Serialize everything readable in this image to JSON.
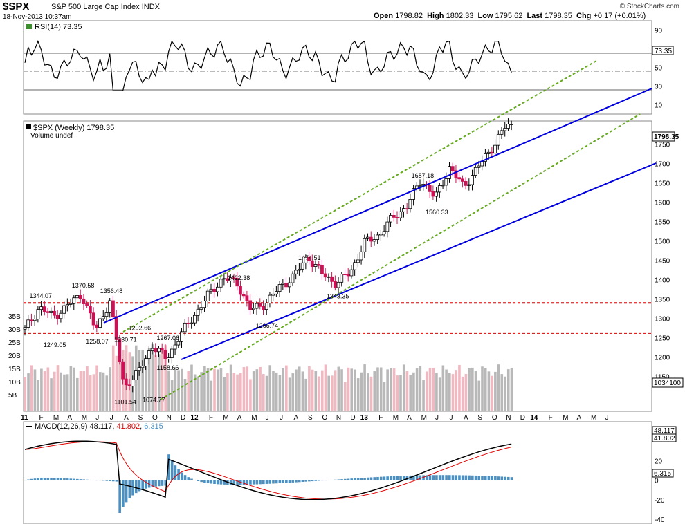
{
  "header": {
    "symbol": "$SPX",
    "name": "S&P 500 Large Cap Index",
    "exchange": "INDX",
    "datetime": "18-Nov-2013 10:37am",
    "brand": "© StockCharts.com",
    "open_label": "Open",
    "open": "1798.82",
    "high_label": "High",
    "high": "1802.33",
    "low_label": "Low",
    "low": "1795.62",
    "last_label": "Last",
    "last": "1798.35",
    "chg_label": "Chg",
    "chg": "+0.17 (+0.01%)"
  },
  "rsi": {
    "label": "RSI(14) 73.35",
    "current": "73.35",
    "ticks": [
      90,
      50,
      30,
      10
    ],
    "ylim": [
      0,
      100
    ],
    "ref_lines": [
      70,
      50,
      30
    ]
  },
  "price_panel": {
    "label": "$SPX (Weekly) 1798.35",
    "volume_label": "Volume undef",
    "current": "1798.35",
    "ticks": [
      1750,
      1700,
      1650,
      1600,
      1550,
      1500,
      1450,
      1400,
      1350,
      1300,
      1250,
      1200,
      1150
    ],
    "volume_ticks": [
      "35B",
      "30B",
      "25B",
      "20B",
      "15B",
      "10B",
      "5B"
    ],
    "volume_current": "1034100",
    "annotations": [
      {
        "text": "1344.07",
        "x": "2011-02",
        "y": 1344.07
      },
      {
        "text": "1249.05",
        "x": "2011-03",
        "y": 1249.05
      },
      {
        "text": "1370.58",
        "x": "2011-05",
        "y": 1370.58
      },
      {
        "text": "1258.07",
        "x": "2011-06",
        "y": 1258.07
      },
      {
        "text": "1356.48",
        "x": "2011-07",
        "y": 1356.48
      },
      {
        "text": "1101.54",
        "x": "2011-08",
        "y": 1101.54
      },
      {
        "text": "1230.71",
        "x": "2011-08",
        "y": 1230.71
      },
      {
        "text": "1292.66",
        "x": "2011-09",
        "y": 1292.66
      },
      {
        "text": "1074.77",
        "x": "2011-10",
        "y": 1074.77
      },
      {
        "text": "1267.06",
        "x": "2011-11",
        "y": 1267.06
      },
      {
        "text": "1158.66",
        "x": "2011-11",
        "y": 1158.66
      },
      {
        "text": "1422.38",
        "x": "2012-04",
        "y": 1422.38
      },
      {
        "text": "1266.74",
        "x": "2012-06",
        "y": 1266.74
      },
      {
        "text": "1474.51",
        "x": "2012-09",
        "y": 1474.51
      },
      {
        "text": "1343.35",
        "x": "2012-11",
        "y": 1343.35
      },
      {
        "text": "1687.18",
        "x": "2013-05",
        "y": 1687.18
      },
      {
        "text": "1560.33",
        "x": "2013-06",
        "y": 1560.33
      }
    ],
    "support_lines": [
      1340,
      1262
    ]
  },
  "x_axis": {
    "labels": [
      "11",
      "F",
      "M",
      "A",
      "M",
      "J",
      "J",
      "A",
      "S",
      "O",
      "N",
      "D",
      "12",
      "F",
      "M",
      "A",
      "M",
      "J",
      "J",
      "A",
      "S",
      "O",
      "N",
      "D",
      "13",
      "F",
      "M",
      "A",
      "M",
      "J",
      "J",
      "A",
      "S",
      "O",
      "N",
      "D",
      "14",
      "F",
      "M",
      "A",
      "M",
      "J"
    ]
  },
  "macd": {
    "label": "MACD(12,26,9)",
    "macd_value": "48.117",
    "signal_value": "41.802",
    "hist_value": "6.315",
    "ticks": [
      20,
      0,
      -20,
      -40
    ],
    "ylim": [
      -45,
      60
    ]
  },
  "colors": {
    "up": "#ffffff",
    "down": "#cc1155",
    "channel": "#0000dd",
    "dashed_channel": "#66aa22",
    "support": "#dd0000",
    "rsi_fill": "#3b8f2d",
    "macd_hist": "#4a90c2",
    "signal": "#e00000",
    "vol_down": "#f0b8c0",
    "vol_up": "#b8b8b8"
  },
  "chart_data": {
    "type": "candlestick",
    "title": "$SPX S&P 500 Large Cap Index INDX",
    "series_name": "$SPX (Weekly)",
    "ylim": [
      1060,
      1810
    ],
    "x_range": [
      "2011-01",
      "2014-07"
    ],
    "weekly_close_anchors": [
      {
        "x": "2011-01",
        "y": 1271
      },
      {
        "x": "2011-02",
        "y": 1329
      },
      {
        "x": "2011-03",
        "y": 1304
      },
      {
        "x": "2011-04",
        "y": 1333
      },
      {
        "x": "2011-05",
        "y": 1363
      },
      {
        "x": "2011-06",
        "y": 1270
      },
      {
        "x": "2011-07",
        "y": 1345
      },
      {
        "x": "2011-08",
        "y": 1123
      },
      {
        "x": "2011-09",
        "y": 1160
      },
      {
        "x": "2011-10",
        "y": 1230
      },
      {
        "x": "2011-11",
        "y": 1195
      },
      {
        "x": "2011-12",
        "y": 1258
      },
      {
        "x": "2012-01",
        "y": 1310
      },
      {
        "x": "2012-02",
        "y": 1362
      },
      {
        "x": "2012-03",
        "y": 1405
      },
      {
        "x": "2012-04",
        "y": 1390
      },
      {
        "x": "2012-05",
        "y": 1320
      },
      {
        "x": "2012-06",
        "y": 1340
      },
      {
        "x": "2012-07",
        "y": 1380
      },
      {
        "x": "2012-08",
        "y": 1410
      },
      {
        "x": "2012-09",
        "y": 1460
      },
      {
        "x": "2012-10",
        "y": 1415
      },
      {
        "x": "2012-11",
        "y": 1390
      },
      {
        "x": "2012-12",
        "y": 1420
      },
      {
        "x": "2013-01",
        "y": 1495
      },
      {
        "x": "2013-02",
        "y": 1515
      },
      {
        "x": "2013-03",
        "y": 1560
      },
      {
        "x": "2013-04",
        "y": 1590
      },
      {
        "x": "2013-05",
        "y": 1660
      },
      {
        "x": "2013-06",
        "y": 1610
      },
      {
        "x": "2013-07",
        "y": 1690
      },
      {
        "x": "2013-08",
        "y": 1640
      },
      {
        "x": "2013-09",
        "y": 1690
      },
      {
        "x": "2013-10",
        "y": 1740
      },
      {
        "x": "2013-11",
        "y": 1798
      }
    ]
  }
}
